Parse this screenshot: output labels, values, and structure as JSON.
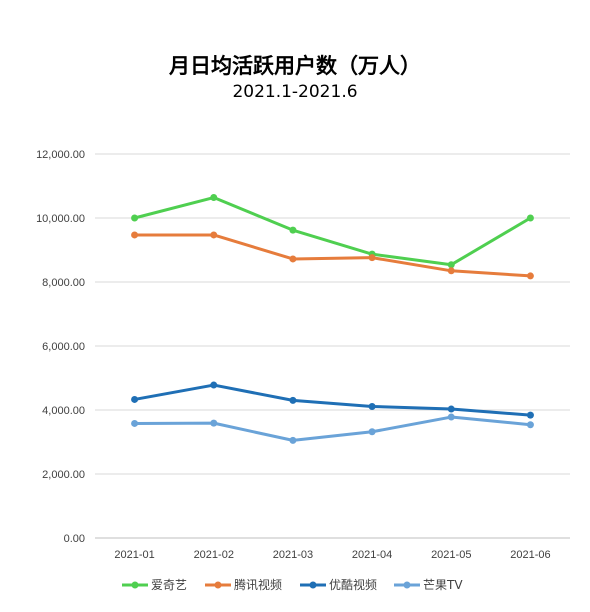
{
  "chart_data": {
    "type": "line",
    "title": "月日均活跃用户数（万人）",
    "subtitle": "2021.1-2021.6",
    "xlabel": "",
    "ylabel": "",
    "categories": [
      "2021-01",
      "2021-02",
      "2021-03",
      "2021-04",
      "2021-05",
      "2021-06"
    ],
    "ylim": [
      0,
      12000
    ],
    "yticks": [
      "0.00",
      "2,000.00",
      "4,000.00",
      "6,000.00",
      "8,000.00",
      "10,000.00",
      "12,000.00"
    ],
    "grid": true,
    "legend_position": "bottom",
    "series": [
      {
        "name": "爱奇艺",
        "color": "#4fcf50",
        "values": [
          10000,
          10640,
          9620,
          8870,
          8540,
          10000
        ]
      },
      {
        "name": "腾讯视频",
        "color": "#e67c3c",
        "values": [
          9470,
          9470,
          8720,
          8760,
          8350,
          8190
        ]
      },
      {
        "name": "优酷视频",
        "color": "#1f6fb5",
        "values": [
          4330,
          4780,
          4300,
          4110,
          4030,
          3840
        ]
      },
      {
        "name": "芒果TV",
        "color": "#6aa3d8",
        "values": [
          3580,
          3590,
          3050,
          3320,
          3780,
          3540
        ]
      }
    ]
  }
}
